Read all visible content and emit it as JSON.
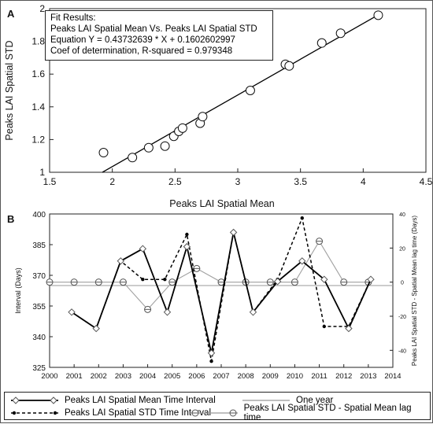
{
  "colors": {
    "line": "#000000",
    "grey": "#999999",
    "axis": "#222222"
  },
  "chart_data": [
    {
      "panel": "A",
      "type": "scatter",
      "xlabel": "Peaks LAI Spatial Mean",
      "ylabel": "Peaks LAI Spatial STD",
      "xlim": [
        1.5,
        4.5
      ],
      "ylim": [
        1,
        2
      ],
      "xticks": [
        "1.5",
        "2",
        "2.5",
        "3",
        "3.5",
        "4",
        "4.5"
      ],
      "yticks": [
        "1",
        "1.2",
        "1.4",
        "1.6",
        "1.8",
        "2"
      ],
      "fit_box": [
        "Fit Results:",
        "Peaks LAI Spatial Mean Vs. Peaks LAI Spatial STD",
        "Equation Y = 0.43732639 * X + 0.1602602997",
        "Coef of determination, R-squared = 0.979348"
      ],
      "fit": {
        "slope": 0.43732639,
        "intercept": 0.1602602997,
        "x_range": [
          1.92,
          4.12
        ]
      },
      "points": [
        {
          "x": 1.93,
          "y": 1.12
        },
        {
          "x": 2.16,
          "y": 1.09
        },
        {
          "x": 2.29,
          "y": 1.15
        },
        {
          "x": 2.42,
          "y": 1.16
        },
        {
          "x": 2.49,
          "y": 1.22
        },
        {
          "x": 2.53,
          "y": 1.25
        },
        {
          "x": 2.56,
          "y": 1.27
        },
        {
          "x": 2.7,
          "y": 1.3
        },
        {
          "x": 2.72,
          "y": 1.34
        },
        {
          "x": 3.1,
          "y": 1.5
        },
        {
          "x": 3.38,
          "y": 1.66
        },
        {
          "x": 3.41,
          "y": 1.65
        },
        {
          "x": 3.67,
          "y": 1.79
        },
        {
          "x": 3.82,
          "y": 1.85
        },
        {
          "x": 4.12,
          "y": 1.96
        }
      ]
    },
    {
      "panel": "B",
      "type": "line",
      "ylabel": "Interval (Days)",
      "y2label": "Peaks LAI Spatial STD - Spatial Mean lag time (Days)",
      "xlim": [
        2000,
        2014
      ],
      "ylim": [
        325,
        400
      ],
      "y2lim": [
        -50,
        40
      ],
      "xticks": [
        "2000",
        "2001",
        "2002",
        "2003",
        "2004",
        "2005",
        "2006",
        "2007",
        "2008",
        "2009",
        "2010",
        "2011",
        "2012",
        "2013",
        "2014"
      ],
      "yticks": [
        "325",
        "340",
        "355",
        "370",
        "385",
        "400"
      ],
      "y2ticks": [
        "-40",
        "-20",
        "0",
        "20",
        "40"
      ],
      "series": [
        {
          "name": "Peaks LAI Spatial Mean Time Interval",
          "axis": "left",
          "x": [
            2000.9,
            2001.9,
            2002.9,
            2003.8,
            2004.8,
            2005.6,
            2006.6,
            2007.5,
            2008.3,
            2009.3,
            2010.3,
            2011.2,
            2012.2,
            2013.1
          ],
          "y": [
            352,
            344,
            377,
            383,
            352,
            384,
            332,
            391,
            352,
            367,
            377,
            368,
            344,
            368
          ]
        },
        {
          "name": "One year",
          "axis": "left",
          "x": [
            2000,
            2014
          ],
          "y": [
            365,
            365
          ]
        },
        {
          "name": "Peaks LAI Spatial STD Time Interval",
          "axis": "left",
          "x": [
            2000.9,
            2001.9,
            2002.9,
            2003.8,
            2004.7,
            2005.6,
            2006.6,
            2007.5,
            2008.3,
            2009.3,
            2010.3,
            2011.2,
            2012.2,
            2013.1
          ],
          "y": [
            352,
            344,
            377,
            368,
            368,
            390,
            328,
            391,
            352,
            368,
            398,
            345,
            345,
            368
          ]
        },
        {
          "name": "Peaks LAI Spatial STD - Spatial Mean lag time",
          "axis": "right",
          "x": [
            2000.0,
            2001.0,
            2002.0,
            2003.0,
            2004.0,
            2005.0,
            2006.0,
            2007.0,
            2008.0,
            2009.0,
            2010.0,
            2011.0,
            2012.0,
            2013.0
          ],
          "y": [
            0,
            0,
            0,
            0,
            -16,
            0,
            8,
            0,
            0,
            0,
            0,
            24,
            0,
            0
          ]
        }
      ]
    }
  ]
}
